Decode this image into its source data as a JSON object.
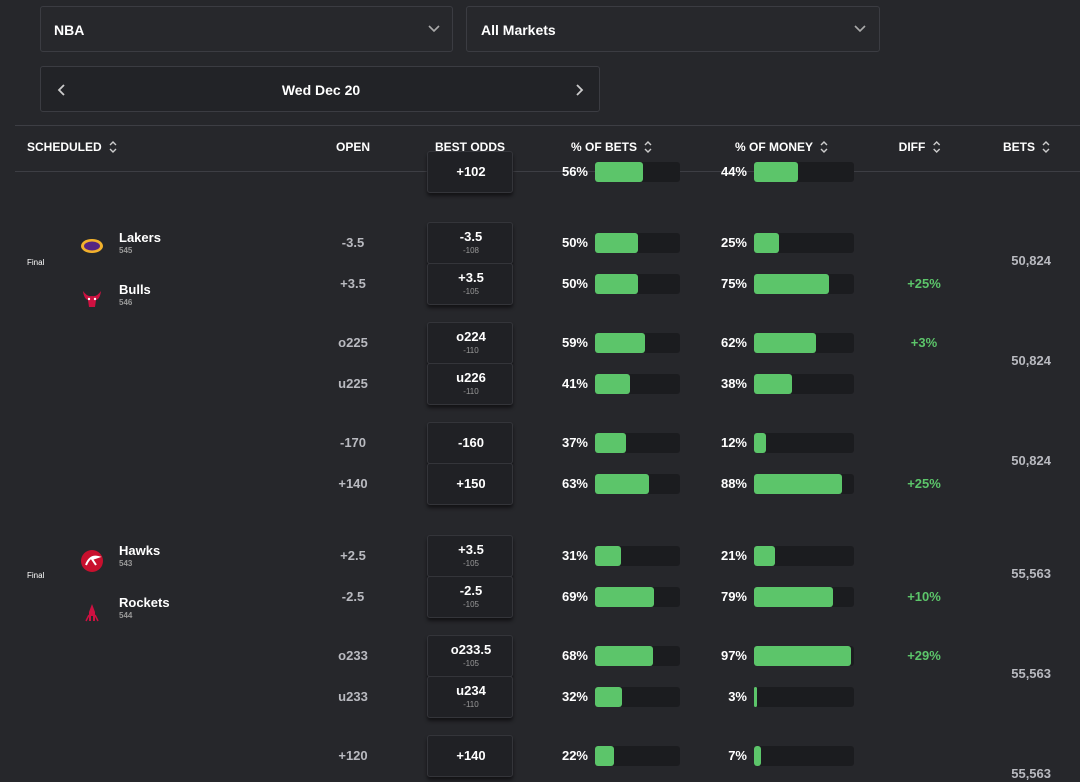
{
  "filters": {
    "league": "NBA",
    "market": "All Markets",
    "date": "Wed Dec 20"
  },
  "columns": [
    "SCHEDULED",
    "OPEN",
    "BEST ODDS",
    "% OF BETS",
    "% OF MONEY",
    "DIFF",
    "BETS"
  ],
  "partial_row": {
    "best": "+102",
    "bets_pct": 56,
    "bets_label": "56%",
    "money_pct": 44,
    "money_label": "44%"
  },
  "games": [
    {
      "status": "Final",
      "teams": [
        {
          "name": "Lakers",
          "number": 545
        },
        {
          "name": "Bulls",
          "number": 546
        }
      ],
      "markets": [
        {
          "bets": "50,824",
          "rows": [
            {
              "open": "-3.5",
              "best": "-3.5",
              "best_sub": "-108",
              "bets_pct": 50,
              "bets_label": "50%",
              "money_pct": 25,
              "money_label": "25%"
            },
            {
              "open": "+3.5",
              "best": "+3.5",
              "best_sub": "-105",
              "bets_pct": 50,
              "bets_label": "50%",
              "money_pct": 75,
              "money_label": "75%",
              "diff": "+25%"
            }
          ]
        },
        {
          "bets": "50,824",
          "rows": [
            {
              "open": "o225",
              "best": "o224",
              "best_sub": "-110",
              "bets_pct": 59,
              "bets_label": "59%",
              "money_pct": 62,
              "money_label": "62%",
              "diff": "+3%"
            },
            {
              "open": "u225",
              "best": "u226",
              "best_sub": "-110",
              "bets_pct": 41,
              "bets_label": "41%",
              "money_pct": 38,
              "money_label": "38%"
            }
          ]
        },
        {
          "bets": "50,824",
          "rows": [
            {
              "open": "-170",
              "best": "-160",
              "bets_pct": 37,
              "bets_label": "37%",
              "money_pct": 12,
              "money_label": "12%"
            },
            {
              "open": "+140",
              "best": "+150",
              "bets_pct": 63,
              "bets_label": "63%",
              "money_pct": 88,
              "money_label": "88%",
              "diff": "+25%"
            }
          ]
        }
      ]
    },
    {
      "status": "Final",
      "teams": [
        {
          "name": "Hawks",
          "number": 543
        },
        {
          "name": "Rockets",
          "number": 544
        }
      ],
      "markets": [
        {
          "bets": "55,563",
          "rows": [
            {
              "open": "+2.5",
              "best": "+3.5",
              "best_sub": "-105",
              "bets_pct": 31,
              "bets_label": "31%",
              "money_pct": 21,
              "money_label": "21%"
            },
            {
              "open": "-2.5",
              "best": "-2.5",
              "best_sub": "-105",
              "bets_pct": 69,
              "bets_label": "69%",
              "money_pct": 79,
              "money_label": "79%",
              "diff": "+10%"
            }
          ]
        },
        {
          "bets": "55,563",
          "rows": [
            {
              "open": "o233",
              "best": "o233.5",
              "best_sub": "-105",
              "bets_pct": 68,
              "bets_label": "68%",
              "money_pct": 97,
              "money_label": "97%",
              "diff": "+29%"
            },
            {
              "open": "u233",
              "best": "u234",
              "best_sub": "-110",
              "bets_pct": 32,
              "bets_label": "32%",
              "money_pct": 3,
              "money_label": "3%"
            }
          ]
        },
        {
          "bets": "55,563",
          "rows": [
            {
              "open": "+120",
              "best": "+140",
              "bets_pct": 22,
              "bets_label": "22%",
              "money_pct": 7,
              "money_label": "7%"
            }
          ]
        }
      ]
    }
  ]
}
